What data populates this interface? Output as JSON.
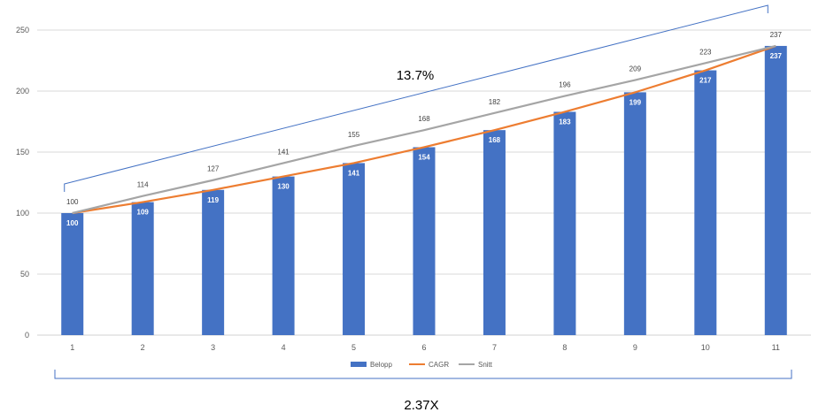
{
  "chart_data": {
    "type": "bar",
    "categories": [
      "1",
      "2",
      "3",
      "4",
      "5",
      "6",
      "7",
      "8",
      "9",
      "10",
      "11"
    ],
    "ylim": [
      0,
      250
    ],
    "yticks": [
      0,
      50,
      100,
      150,
      200,
      250
    ],
    "grid": true,
    "legend_position": "bottom",
    "series": [
      {
        "name": "Belopp",
        "type": "bar",
        "color": "#4472C4",
        "values": [
          100,
          109,
          119,
          130,
          141,
          154,
          168,
          183,
          199,
          217,
          237
        ]
      },
      {
        "name": "CAGR",
        "type": "line",
        "color": "#ED7D31",
        "values": [
          100,
          109,
          119,
          130,
          141,
          154,
          168,
          183,
          199,
          217,
          237
        ]
      },
      {
        "name": "Snitt",
        "type": "line",
        "color": "#A5A5A5",
        "values": [
          100,
          114,
          127,
          141,
          155,
          168,
          182,
          196,
          209,
          223,
          237
        ]
      }
    ],
    "annotations": {
      "cagr_text": "13.7%",
      "multiple_text": "2.37X",
      "bracket_color": "#4472C4"
    }
  }
}
